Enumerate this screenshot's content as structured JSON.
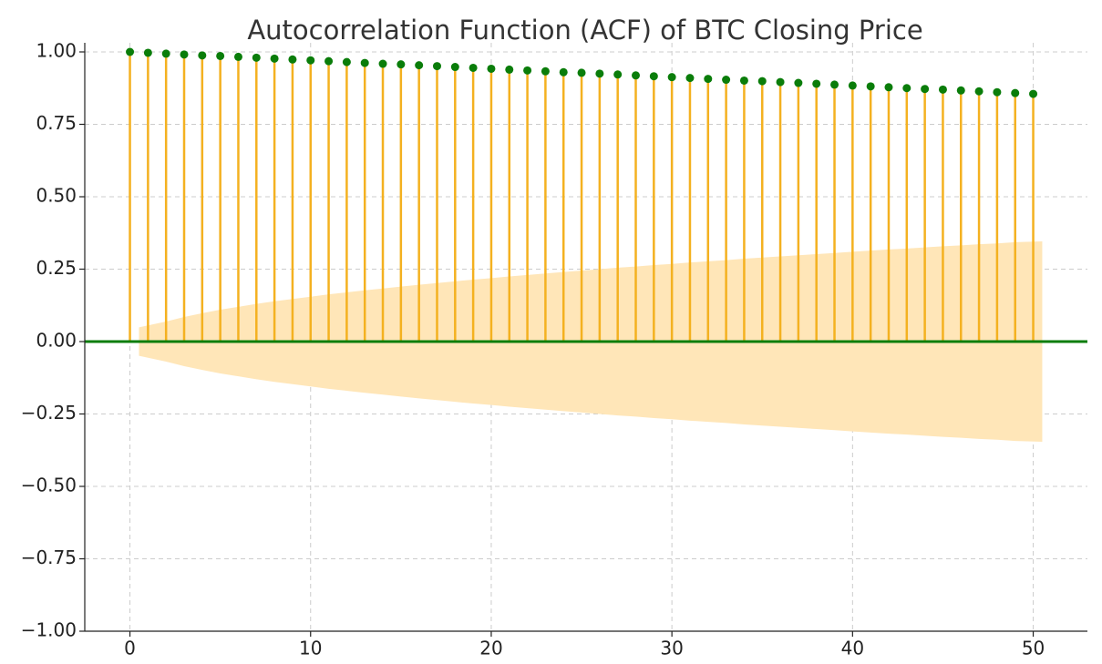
{
  "chart_data": {
    "type": "stem",
    "title": "Autocorrelation Function (ACF) of BTC Closing Price",
    "x": [
      0,
      1,
      2,
      3,
      4,
      5,
      6,
      7,
      8,
      9,
      10,
      11,
      12,
      13,
      14,
      15,
      16,
      17,
      18,
      19,
      20,
      21,
      22,
      23,
      24,
      25,
      26,
      27,
      28,
      29,
      30,
      31,
      32,
      33,
      34,
      35,
      36,
      37,
      38,
      39,
      40,
      41,
      42,
      43,
      44,
      45,
      46,
      47,
      48,
      49,
      50
    ],
    "values": [
      1.0,
      0.997,
      0.994,
      0.991,
      0.988,
      0.986,
      0.983,
      0.98,
      0.977,
      0.974,
      0.971,
      0.968,
      0.965,
      0.962,
      0.959,
      0.957,
      0.954,
      0.951,
      0.948,
      0.945,
      0.942,
      0.939,
      0.936,
      0.933,
      0.93,
      0.928,
      0.925,
      0.922,
      0.919,
      0.916,
      0.913,
      0.91,
      0.907,
      0.904,
      0.901,
      0.899,
      0.896,
      0.893,
      0.89,
      0.887,
      0.884,
      0.881,
      0.878,
      0.875,
      0.872,
      0.87,
      0.867,
      0.864,
      0.861,
      0.858,
      0.855
    ],
    "color": "#f4b120",
    "marker_color": "#0a7d0a",
    "zero_line_color": "#0a7d0a",
    "band": {
      "color": "#ffe6b8",
      "x": [
        0.5,
        2,
        3,
        4,
        5,
        6,
        7,
        8,
        9,
        10,
        11,
        12,
        13,
        14,
        15,
        16,
        17,
        18,
        19,
        20,
        21,
        22,
        23,
        24,
        25,
        26,
        27,
        28,
        29,
        30,
        31,
        32,
        33,
        34,
        35,
        36,
        37,
        38,
        39,
        40,
        41,
        42,
        43,
        44,
        45,
        46,
        47,
        48,
        49,
        50.5
      ],
      "upper": [
        0.049,
        0.069,
        0.085,
        0.098,
        0.11,
        0.12,
        0.13,
        0.139,
        0.147,
        0.155,
        0.163,
        0.17,
        0.177,
        0.183,
        0.19,
        0.196,
        0.202,
        0.208,
        0.214,
        0.219,
        0.225,
        0.23,
        0.235,
        0.24,
        0.245,
        0.25,
        0.255,
        0.259,
        0.264,
        0.268,
        0.273,
        0.277,
        0.281,
        0.286,
        0.29,
        0.294,
        0.298,
        0.302,
        0.306,
        0.31,
        0.314,
        0.318,
        0.321,
        0.325,
        0.329,
        0.332,
        0.336,
        0.339,
        0.343,
        0.346
      ],
      "lower": [
        -0.049,
        -0.069,
        -0.085,
        -0.098,
        -0.11,
        -0.12,
        -0.13,
        -0.139,
        -0.147,
        -0.155,
        -0.163,
        -0.17,
        -0.177,
        -0.183,
        -0.19,
        -0.196,
        -0.202,
        -0.208,
        -0.214,
        -0.219,
        -0.225,
        -0.23,
        -0.235,
        -0.24,
        -0.245,
        -0.25,
        -0.255,
        -0.259,
        -0.264,
        -0.268,
        -0.273,
        -0.277,
        -0.281,
        -0.286,
        -0.29,
        -0.294,
        -0.298,
        -0.302,
        -0.306,
        -0.31,
        -0.314,
        -0.318,
        -0.321,
        -0.325,
        -0.329,
        -0.332,
        -0.336,
        -0.339,
        -0.343,
        -0.346
      ]
    },
    "xlim": [
      -2.5,
      53
    ],
    "ylim": [
      -1,
      1
    ],
    "xticks": [
      0,
      10,
      20,
      30,
      40,
      50
    ],
    "yticks": [
      {
        "value": -1,
        "label": "−1.00"
      },
      {
        "value": -0.75,
        "label": "−0.75"
      },
      {
        "value": -0.5,
        "label": "−0.50"
      },
      {
        "value": -0.25,
        "label": "−0.25"
      },
      {
        "value": 0,
        "label": "0.00"
      },
      {
        "value": 0.25,
        "label": "0.25"
      },
      {
        "value": 0.5,
        "label": "0.50"
      },
      {
        "value": 0.75,
        "label": "0.75"
      },
      {
        "value": 1,
        "label": "1.00"
      }
    ],
    "grid": true
  }
}
